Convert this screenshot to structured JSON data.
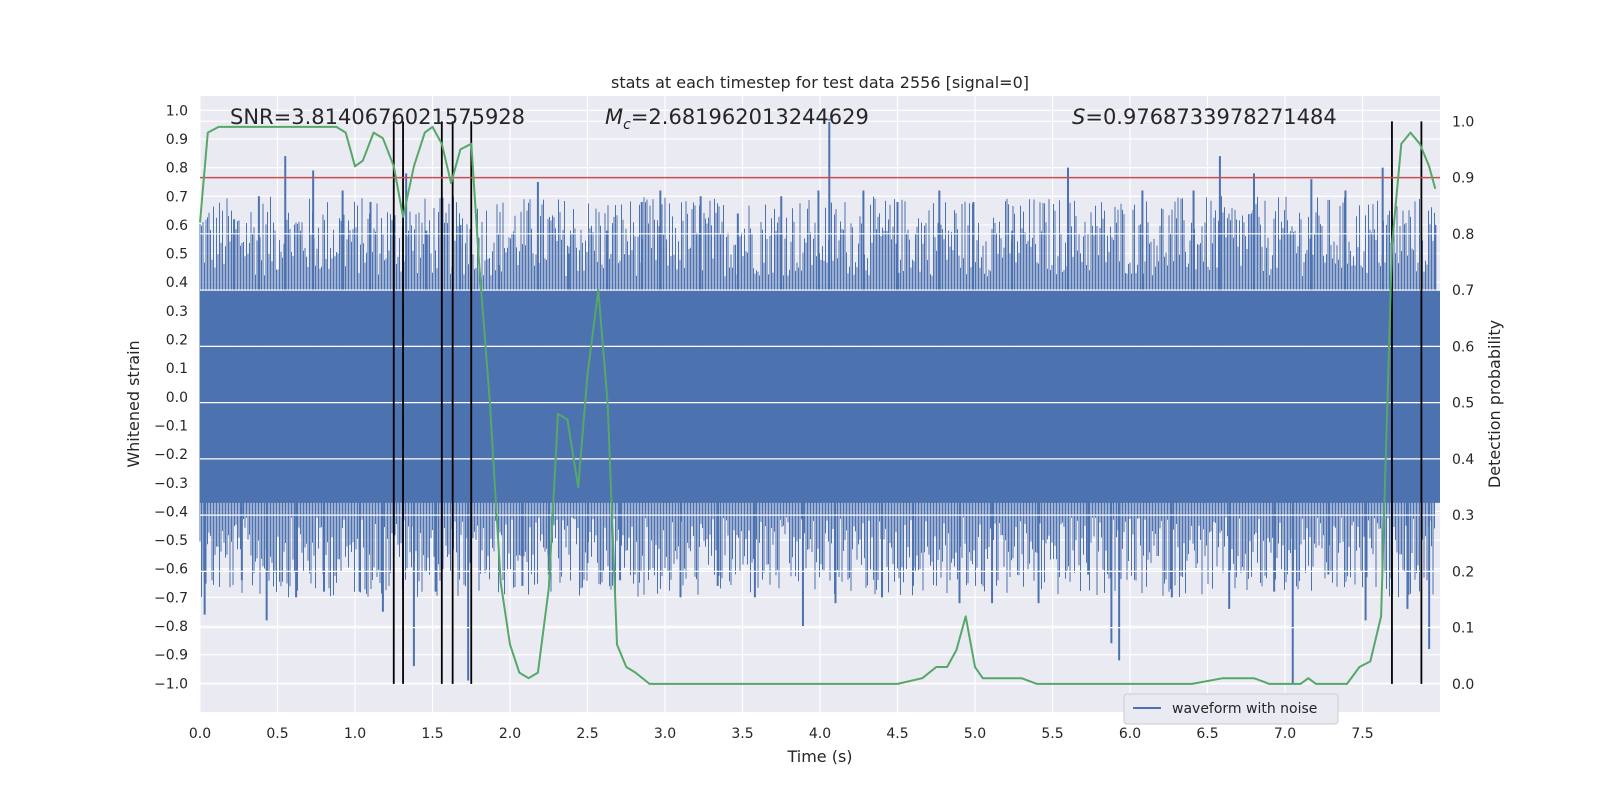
{
  "chart_data": {
    "type": "line",
    "title": "stats at each timestep for test data 2556 [signal=0]",
    "xlabel": "Time (s)",
    "ylabel_left": "Whitened strain",
    "ylabel_right": "Detection probability",
    "xlim": [
      0.0,
      8.0
    ],
    "ylim_left": [
      -1.1,
      1.05
    ],
    "ylim_right": [
      -0.05,
      1.045
    ],
    "x_ticks": [
      "0.0",
      "0.5",
      "1.0",
      "1.5",
      "2.0",
      "2.5",
      "3.0",
      "3.5",
      "4.0",
      "4.5",
      "5.0",
      "5.5",
      "6.0",
      "6.5",
      "7.0",
      "7.5"
    ],
    "y_left_ticks": [
      "1.0",
      "0.9",
      "0.8",
      "0.7",
      "0.6",
      "0.5",
      "0.4",
      "0.3",
      "0.2",
      "0.1",
      "0.0",
      "−0.1",
      "−0.2",
      "−0.3",
      "−0.4",
      "−0.5",
      "−0.6",
      "−0.7",
      "−0.8",
      "−0.9",
      "−1.0"
    ],
    "y_right_ticks": [
      "1.0",
      "0.9",
      "0.8",
      "0.7",
      "0.6",
      "0.5",
      "0.4",
      "0.3",
      "0.2",
      "0.1",
      "0.0"
    ],
    "annotations": {
      "snr": "SNR=3.8140676021575928",
      "mc_symbol": "M",
      "mc_subscript": "c",
      "mc_value": "=2.681962013244629",
      "s_symbol": "S",
      "s_value": "=0.9768733978271484"
    },
    "threshold": 0.9,
    "event_lines_x": [
      1.25,
      1.31,
      1.56,
      1.63,
      1.75,
      7.69,
      7.88
    ],
    "series": [
      {
        "name": "waveform with noise",
        "color": "#4c72b0",
        "core_amplitude": 0.37,
        "spikes": [
          [
            0.03,
            -0.76
          ],
          [
            0.22,
            0.62
          ],
          [
            0.27,
            -0.64
          ],
          [
            0.38,
            0.7
          ],
          [
            0.43,
            -0.78
          ],
          [
            0.55,
            0.84
          ],
          [
            0.62,
            -0.7
          ],
          [
            0.73,
            0.79
          ],
          [
            0.8,
            -0.68
          ],
          [
            0.92,
            0.72
          ],
          [
            1.03,
            -0.68
          ],
          [
            1.1,
            0.68
          ],
          [
            1.18,
            -0.75
          ],
          [
            1.33,
            0.78
          ],
          [
            1.38,
            -0.94
          ],
          [
            1.46,
            0.58
          ],
          [
            1.52,
            -0.68
          ],
          [
            1.68,
            0.6
          ],
          [
            1.73,
            -0.99
          ],
          [
            1.93,
            0.46
          ],
          [
            2.08,
            -0.66
          ],
          [
            2.18,
            0.75
          ],
          [
            2.25,
            -0.62
          ],
          [
            2.38,
            0.5
          ],
          [
            2.5,
            -0.58
          ],
          [
            2.63,
            0.58
          ],
          [
            2.71,
            -0.64
          ],
          [
            2.85,
            0.68
          ],
          [
            2.97,
            0.72
          ],
          [
            3.1,
            -0.7
          ],
          [
            3.23,
            0.7
          ],
          [
            3.34,
            -0.66
          ],
          [
            3.47,
            0.64
          ],
          [
            3.58,
            -0.7
          ],
          [
            3.75,
            0.7
          ],
          [
            3.89,
            -0.8
          ],
          [
            3.99,
            0.72
          ],
          [
            4.06,
            0.97
          ],
          [
            4.1,
            -0.72
          ],
          [
            4.28,
            0.72
          ],
          [
            4.4,
            -0.7
          ],
          [
            4.5,
            0.68
          ],
          [
            4.6,
            -0.66
          ],
          [
            4.77,
            0.72
          ],
          [
            4.9,
            -0.72
          ],
          [
            4.99,
            0.68
          ],
          [
            5.11,
            -0.72
          ],
          [
            5.24,
            0.58
          ],
          [
            5.41,
            -0.72
          ],
          [
            5.6,
            0.8
          ],
          [
            5.73,
            -0.62
          ],
          [
            5.88,
            -0.86
          ],
          [
            5.93,
            -0.92
          ],
          [
            6.08,
            0.72
          ],
          [
            6.27,
            -0.7
          ],
          [
            6.41,
            0.72
          ],
          [
            6.58,
            0.84
          ],
          [
            6.64,
            -0.74
          ],
          [
            6.8,
            0.78
          ],
          [
            6.93,
            -0.68
          ],
          [
            7.05,
            -1.0
          ],
          [
            7.17,
            0.76
          ],
          [
            7.28,
            -0.62
          ],
          [
            7.39,
            0.72
          ],
          [
            7.52,
            -0.78
          ],
          [
            7.63,
            0.8
          ],
          [
            7.79,
            -0.74
          ],
          [
            7.93,
            -0.88
          ],
          [
            7.97,
            0.6
          ]
        ]
      },
      {
        "name": "detection probability",
        "color": "#55a868",
        "x": [
          0.0,
          0.05,
          0.12,
          0.2,
          0.4,
          0.6,
          0.8,
          0.88,
          0.94,
          1.0,
          1.05,
          1.12,
          1.18,
          1.25,
          1.31,
          1.38,
          1.45,
          1.5,
          1.56,
          1.62,
          1.68,
          1.75,
          1.8,
          1.87,
          1.94,
          2.0,
          2.06,
          2.12,
          2.18,
          2.25,
          2.31,
          2.37,
          2.44,
          2.5,
          2.57,
          2.63,
          2.69,
          2.75,
          2.81,
          2.9,
          3.0,
          3.2,
          3.4,
          3.6,
          3.8,
          4.0,
          4.2,
          4.5,
          4.66,
          4.75,
          4.82,
          4.88,
          4.94,
          5.0,
          5.05,
          5.2,
          5.3,
          5.4,
          5.5,
          5.6,
          5.8,
          6.0,
          6.2,
          6.4,
          6.6,
          6.7,
          6.8,
          6.9,
          7.0,
          7.1,
          7.15,
          7.2,
          7.3,
          7.4,
          7.48,
          7.55,
          7.62,
          7.69,
          7.75,
          7.81,
          7.87,
          7.93,
          7.97
        ],
        "y": [
          0.82,
          0.98,
          0.99,
          0.99,
          0.99,
          0.99,
          0.99,
          0.99,
          0.98,
          0.92,
          0.93,
          0.98,
          0.97,
          0.92,
          0.83,
          0.92,
          0.98,
          0.99,
          0.96,
          0.89,
          0.95,
          0.96,
          0.75,
          0.5,
          0.18,
          0.07,
          0.02,
          0.01,
          0.02,
          0.17,
          0.48,
          0.47,
          0.35,
          0.55,
          0.7,
          0.5,
          0.07,
          0.03,
          0.02,
          0.0,
          0.0,
          0.0,
          0.0,
          0.0,
          0.0,
          0.0,
          0.0,
          0.0,
          0.01,
          0.03,
          0.03,
          0.06,
          0.12,
          0.03,
          0.01,
          0.01,
          0.01,
          0.0,
          0.0,
          0.0,
          0.0,
          0.0,
          0.0,
          0.0,
          0.01,
          0.01,
          0.01,
          0.0,
          0.0,
          0.0,
          0.01,
          0.0,
          0.0,
          0.0,
          0.03,
          0.04,
          0.12,
          0.78,
          0.96,
          0.98,
          0.96,
          0.92,
          0.88
        ]
      }
    ],
    "legend": {
      "placement": "bottom-right",
      "label": "waveform with noise"
    }
  }
}
